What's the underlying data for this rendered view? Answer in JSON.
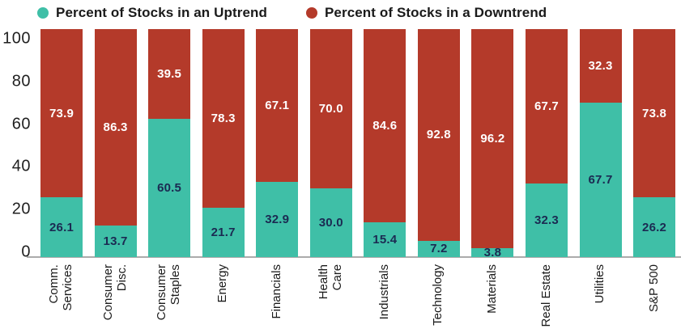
{
  "legend": [
    {
      "label": "Percent of Stocks in an Uptrend",
      "color": "#3fbfa7"
    },
    {
      "label": "Percent of Stocks in a Downtrend",
      "color": "#b43a2a"
    }
  ],
  "chart_data": {
    "type": "bar",
    "stacked": true,
    "title": "",
    "xlabel": "",
    "ylabel": "",
    "ylim": [
      0,
      100
    ],
    "yticks": [
      0,
      20,
      40,
      60,
      80,
      100
    ],
    "grid": false,
    "legend_position": "top",
    "categories": [
      "Comm.\nServices",
      "Consumer\nDisc.",
      "Consumer\nStaples",
      "Energy",
      "Financials",
      "Health\nCare",
      "Industrials",
      "Technology",
      "Materials",
      "Real Estate",
      "Utilities",
      "S&P 500"
    ],
    "series": [
      {
        "name": "Percent of Stocks in an Uptrend",
        "color": "#3fbfa7",
        "values": [
          26.1,
          13.7,
          60.5,
          21.7,
          32.9,
          30.0,
          15.4,
          7.2,
          3.8,
          32.3,
          67.7,
          26.2
        ]
      },
      {
        "name": "Percent of Stocks in a Downtrend",
        "color": "#b43a2a",
        "values": [
          73.9,
          86.3,
          39.5,
          78.3,
          67.1,
          70.0,
          84.6,
          92.8,
          96.2,
          67.7,
          32.3,
          73.8
        ]
      }
    ],
    "value_label_colors": {
      "up": "#1b2a52",
      "down": "#ffffff"
    },
    "axis_colors": {
      "axis_line": "#ababab",
      "tick_text": "#1f1f1f"
    }
  }
}
